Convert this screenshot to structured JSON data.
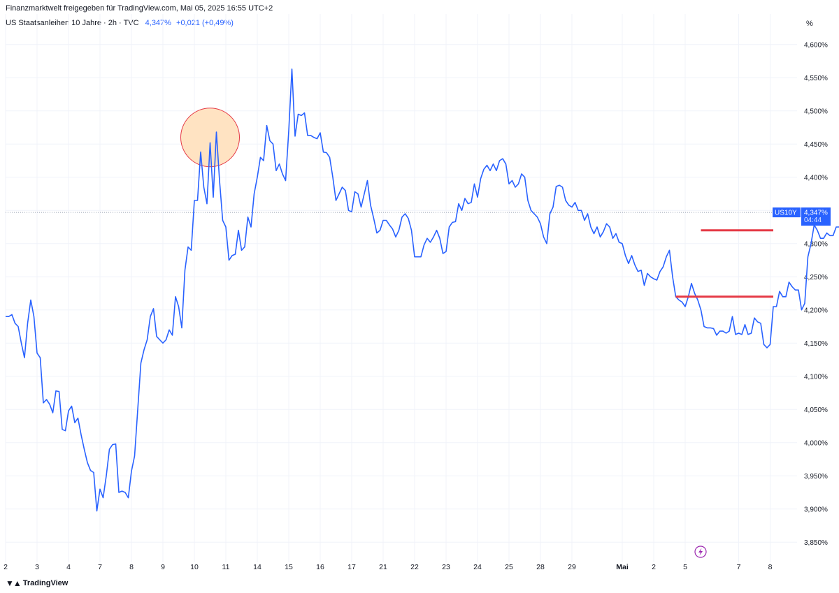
{
  "header": {
    "attribution": "Finanzmarktwelt freigegeben für TradingView.com, Mai 05, 2025 16:55 UTC+2",
    "symbol_title": "US Staatsanleihen 10 Jahre · 2h · TVC",
    "last_price": "4,347%",
    "change": "+0,021 (+0,49%)"
  },
  "footer": {
    "brand": "TradingView",
    "logo_icon": "tradingview-logo-icon"
  },
  "colors": {
    "line": "#2962ff",
    "marker_red": "#e53945",
    "highlight_fill": "#ffe3c2",
    "highlight_stroke": "#e53945"
  },
  "chart_data": {
    "type": "line",
    "ylabel": "%",
    "ylim": [
      3.825,
      4.625
    ],
    "y_ticks": [
      "3,850%",
      "3,900%",
      "3,950%",
      "4,000%",
      "4,050%",
      "4,100%",
      "4,150%",
      "4,200%",
      "4,250%",
      "4,300%",
      "4,350%",
      "4,400%",
      "4,450%",
      "4,500%",
      "4,550%",
      "4,600%"
    ],
    "y_tick_values": [
      3.85,
      3.9,
      3.95,
      4.0,
      4.05,
      4.1,
      4.15,
      4.2,
      4.25,
      4.3,
      4.35,
      4.4,
      4.45,
      4.5,
      4.55,
      4.6
    ],
    "x_ticks": [
      {
        "label": "2",
        "i": 0
      },
      {
        "label": "3",
        "i": 10
      },
      {
        "label": "4",
        "i": 20
      },
      {
        "label": "7",
        "i": 30
      },
      {
        "label": "8",
        "i": 40
      },
      {
        "label": "9",
        "i": 50
      },
      {
        "label": "10",
        "i": 60
      },
      {
        "label": "11",
        "i": 70
      },
      {
        "label": "14",
        "i": 80
      },
      {
        "label": "15",
        "i": 90
      },
      {
        "label": "16",
        "i": 100
      },
      {
        "label": "17",
        "i": 110
      },
      {
        "label": "21",
        "i": 120
      },
      {
        "label": "22",
        "i": 130
      },
      {
        "label": "23",
        "i": 140
      },
      {
        "label": "24",
        "i": 150
      },
      {
        "label": "25",
        "i": 160
      },
      {
        "label": "28",
        "i": 170
      },
      {
        "label": "29",
        "i": 180
      },
      {
        "label": "Mai",
        "i": 196,
        "bold": true
      },
      {
        "label": "2",
        "i": 206
      },
      {
        "label": "5",
        "i": 216
      },
      {
        "label": "7",
        "i": 233
      },
      {
        "label": "8",
        "i": 243
      }
    ],
    "x_index_range": [
      0,
      248
    ],
    "series": [
      {
        "values": [
          4.19,
          4.19,
          4.193,
          4.18,
          4.175,
          4.15,
          4.128,
          4.18,
          4.215,
          4.19,
          4.135,
          4.128,
          4.06,
          4.065,
          4.058,
          4.045,
          4.078,
          4.077,
          4.02,
          4.018,
          4.048,
          4.055,
          4.03,
          4.037,
          4.012,
          3.99,
          3.97,
          3.958,
          3.955,
          3.897,
          3.93,
          3.917,
          3.95,
          3.99,
          3.997,
          3.998,
          3.925,
          3.927,
          3.925,
          3.917,
          3.957,
          3.98,
          4.05,
          4.12,
          4.14,
          4.155,
          4.19,
          4.202,
          4.16,
          4.155,
          4.15,
          4.155,
          4.17,
          4.162,
          4.22,
          4.205,
          4.173,
          4.26,
          4.295,
          4.29,
          4.365,
          4.365,
          4.438,
          4.385,
          4.36,
          4.452,
          4.37,
          4.468,
          4.395,
          4.335,
          4.325,
          4.275,
          4.282,
          4.284,
          4.32,
          4.29,
          4.295,
          4.34,
          4.325,
          4.375,
          4.4,
          4.43,
          4.425,
          4.478,
          4.455,
          4.45,
          4.41,
          4.42,
          4.405,
          4.395,
          4.47,
          4.563,
          4.462,
          4.495,
          4.493,
          4.497,
          4.463,
          4.463,
          4.46,
          4.458,
          4.467,
          4.438,
          4.437,
          4.43,
          4.4,
          4.365,
          4.375,
          4.385,
          4.38,
          4.35,
          4.348,
          4.378,
          4.375,
          4.355,
          4.375,
          4.395,
          4.358,
          4.338,
          4.316,
          4.32,
          4.335,
          4.335,
          4.328,
          4.322,
          4.31,
          4.32,
          4.34,
          4.345,
          4.338,
          4.32,
          4.28,
          4.28,
          4.28,
          4.298,
          4.308,
          4.302,
          4.31,
          4.32,
          4.308,
          4.285,
          4.288,
          4.325,
          4.332,
          4.333,
          4.36,
          4.35,
          4.368,
          4.36,
          4.362,
          4.39,
          4.37,
          4.398,
          4.412,
          4.418,
          4.41,
          4.42,
          4.41,
          4.425,
          4.428,
          4.42,
          4.39,
          4.395,
          4.385,
          4.39,
          4.405,
          4.4,
          4.365,
          4.35,
          4.345,
          4.34,
          4.33,
          4.31,
          4.3,
          4.345,
          4.355,
          4.386,
          4.388,
          4.385,
          4.365,
          4.358,
          4.355,
          4.362,
          4.35,
          4.35,
          4.335,
          4.345,
          4.325,
          4.315,
          4.325,
          4.31,
          4.318,
          4.33,
          4.325,
          4.308,
          4.315,
          4.302,
          4.3,
          4.282,
          4.27,
          4.282,
          4.268,
          4.258,
          4.26,
          4.237,
          4.255,
          4.25,
          4.247,
          4.245,
          4.258,
          4.265,
          4.28,
          4.29,
          4.25,
          4.22,
          4.215,
          4.212,
          4.205,
          4.22,
          4.24,
          4.225,
          4.215,
          4.2,
          4.175,
          4.173,
          4.173,
          4.172,
          4.162,
          4.168,
          4.168,
          4.165,
          4.168,
          4.19,
          4.163,
          4.165,
          4.163,
          4.178,
          4.163,
          4.165,
          4.188,
          4.182,
          4.18,
          4.148,
          4.143,
          4.148,
          4.205,
          4.205,
          4.228,
          4.22,
          4.22,
          4.242,
          4.235,
          4.23,
          4.23,
          4.2,
          4.21,
          4.28,
          4.3,
          4.328,
          4.32,
          4.308,
          4.308,
          4.316,
          4.312,
          4.312,
          4.325,
          4.325,
          4.347
        ]
      }
    ],
    "last_value_label": {
      "symbol": "US10Y",
      "value": "4,347%",
      "countdown": "04:44"
    },
    "reference_value": 4.347,
    "annotations": {
      "highlight_circle": {
        "i_center": 65,
        "y_center": 4.46
      },
      "red_lines": [
        {
          "i_start": 221,
          "i_end": 244,
          "y": 4.32
        },
        {
          "i_start": 213,
          "i_end": 244,
          "y": 4.22
        }
      ]
    },
    "grid": true,
    "icons": {
      "snapshot_marker": "lightning-icon"
    }
  }
}
